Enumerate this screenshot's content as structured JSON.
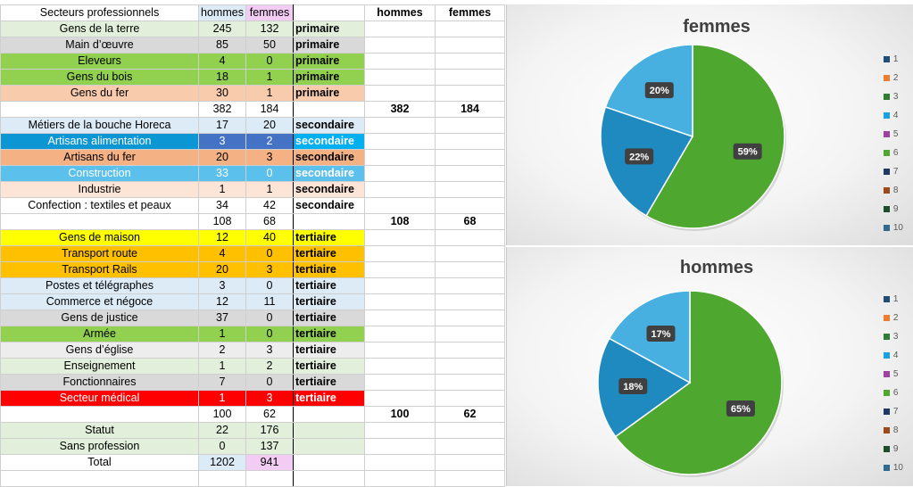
{
  "sheet": {
    "header": {
      "sector": "Secteurs professionnels",
      "hommes": "hommes",
      "femmes": "femmes",
      "cat": "",
      "tot_hommes": "hommes",
      "tot_femmes": "femmes"
    },
    "rows": [
      {
        "name": "Gens de la terre",
        "h": "245",
        "f": "132",
        "cat": "primaire",
        "th": "",
        "tf": "",
        "bg": "#e2efda",
        "fg": "#000000",
        "nbg": "#e2efda",
        "cbg": "#e2efda"
      },
      {
        "name": "Main d’œuvre",
        "h": "85",
        "f": "50",
        "cat": "primaire",
        "th": "",
        "tf": "",
        "bg": "#d9d9d9",
        "fg": "#000000",
        "nbg": "#d9d9d9",
        "cbg": "#d9d9d9"
      },
      {
        "name": "Eleveurs",
        "h": "4",
        "f": "0",
        "cat": "primaire",
        "th": "",
        "tf": "",
        "bg": "#92d050",
        "fg": "#000000",
        "nbg": "#92d050",
        "cbg": "#92d050"
      },
      {
        "name": "Gens du bois",
        "h": "18",
        "f": "1",
        "cat": "primaire",
        "th": "",
        "tf": "",
        "bg": "#92d050",
        "fg": "#000000",
        "nbg": "#92d050",
        "cbg": "#92d050"
      },
      {
        "name": "Gens du fer",
        "h": "30",
        "f": "1",
        "cat": "primaire",
        "th": "",
        "tf": "",
        "bg": "#f8cbad",
        "fg": "#000000",
        "nbg": "#f8cbad",
        "cbg": "#f8cbad"
      },
      {
        "name": "",
        "h": "382",
        "f": "184",
        "cat": "",
        "th": "382",
        "tf": "184",
        "bg": "#ffffff",
        "fg": "#000000",
        "nbg": "#ffffff",
        "cbg": "#ffffff"
      },
      {
        "name": "Métiers de la bouche Horeca",
        "h": "17",
        "f": "20",
        "cat": "secondaire",
        "th": "",
        "tf": "",
        "bg": "#ddebf7",
        "fg": "#000000",
        "nbg": "#ddebf7",
        "cbg": "#ddebf7"
      },
      {
        "name": "Artisans alimentation",
        "h": "3",
        "f": "2",
        "cat": "secondaire",
        "th": "",
        "tf": "",
        "bg": "#0c96d4",
        "fg": "#ffffff",
        "nbg": "#4472c4",
        "cbg": "#00b0f0"
      },
      {
        "name": "Artisans du fer",
        "h": "20",
        "f": "3",
        "cat": "secondaire",
        "th": "",
        "tf": "",
        "bg": "#f4b183",
        "fg": "#000000",
        "nbg": "#f4b183",
        "cbg": "#f4b183"
      },
      {
        "name": "Construction",
        "h": "33",
        "f": "0",
        "cat": "secondaire",
        "th": "",
        "tf": "",
        "bg": "#5bc0eb",
        "fg": "#ffffff",
        "nbg": "#5bc0eb",
        "cbg": "#5bc0eb"
      },
      {
        "name": "Industrie",
        "h": "1",
        "f": "1",
        "cat": "secondaire",
        "th": "",
        "tf": "",
        "bg": "#fce4d6",
        "fg": "#000000",
        "nbg": "#fce4d6",
        "cbg": "#fce4d6"
      },
      {
        "name": "Confection : textiles et peaux",
        "h": "34",
        "f": "42",
        "cat": "secondaire",
        "th": "",
        "tf": "",
        "bg": "#ffffff",
        "fg": "#000000",
        "nbg": "#ffffff",
        "cbg": "#ffffff"
      },
      {
        "name": "",
        "h": "108",
        "f": "68",
        "cat": "",
        "th": "108",
        "tf": "68",
        "bg": "#ffffff",
        "fg": "#000000",
        "nbg": "#ffffff",
        "cbg": "#ffffff"
      },
      {
        "name": "Gens de maison",
        "h": "12",
        "f": "40",
        "cat": "tertiaire",
        "th": "",
        "tf": "",
        "bg": "#ffff00",
        "fg": "#000000",
        "nbg": "#ffff00",
        "cbg": "#ffff00"
      },
      {
        "name": "Transport route",
        "h": "4",
        "f": "0",
        "cat": "tertiaire",
        "th": "",
        "tf": "",
        "bg": "#ffc000",
        "fg": "#000000",
        "nbg": "#ffc000",
        "cbg": "#ffc000"
      },
      {
        "name": "Transport Rails",
        "h": "20",
        "f": "3",
        "cat": "tertiaire",
        "th": "",
        "tf": "",
        "bg": "#ffc000",
        "fg": "#000000",
        "nbg": "#ffc000",
        "cbg": "#ffc000"
      },
      {
        "name": "Postes et télégraphes",
        "h": "3",
        "f": "0",
        "cat": "tertiaire",
        "th": "",
        "tf": "",
        "bg": "#ddebf7",
        "fg": "#000000",
        "nbg": "#ddebf7",
        "cbg": "#ddebf7"
      },
      {
        "name": "Commerce et négoce",
        "h": "12",
        "f": "11",
        "cat": "tertiaire",
        "th": "",
        "tf": "",
        "bg": "#ddebf7",
        "fg": "#000000",
        "nbg": "#ddebf7",
        "cbg": "#ddebf7"
      },
      {
        "name": "Gens de justice",
        "h": "37",
        "f": "0",
        "cat": "tertiaire",
        "th": "",
        "tf": "",
        "bg": "#d9d9d9",
        "fg": "#000000",
        "nbg": "#d9d9d9",
        "cbg": "#d9d9d9"
      },
      {
        "name": "Armée",
        "h": "1",
        "f": "0",
        "cat": "tertiaire",
        "th": "",
        "tf": "",
        "bg": "#92d050",
        "fg": "#000000",
        "nbg": "#92d050",
        "cbg": "#92d050"
      },
      {
        "name": "Gens d’église",
        "h": "2",
        "f": "3",
        "cat": "tertiaire",
        "th": "",
        "tf": "",
        "bg": "#ededed",
        "fg": "#000000",
        "nbg": "#ededed",
        "cbg": "#ededed"
      },
      {
        "name": "Enseignement",
        "h": "1",
        "f": "2",
        "cat": "tertiaire",
        "th": "",
        "tf": "",
        "bg": "#e2efda",
        "fg": "#000000",
        "nbg": "#e2efda",
        "cbg": "#e2efda"
      },
      {
        "name": "Fonctionnaires",
        "h": "7",
        "f": "0",
        "cat": "tertiaire",
        "th": "",
        "tf": "",
        "bg": "#d9d9d9",
        "fg": "#000000",
        "nbg": "#d9d9d9",
        "cbg": "#d9d9d9"
      },
      {
        "name": "Secteur médical",
        "h": "1",
        "f": "3",
        "cat": "tertiaire",
        "th": "",
        "tf": "",
        "bg": "#ff0000",
        "fg": "#ffffff",
        "nbg": "#ff0000",
        "cbg": "#ff0000"
      },
      {
        "name": "",
        "h": "100",
        "f": "62",
        "cat": "",
        "th": "100",
        "tf": "62",
        "bg": "#ffffff",
        "fg": "#000000",
        "nbg": "#ffffff",
        "cbg": "#ffffff"
      },
      {
        "name": "Statut",
        "h": "22",
        "f": "176",
        "cat": "",
        "th": "",
        "tf": "",
        "bg": "#e2efda",
        "fg": "#000000",
        "nbg": "#e2efda",
        "cbg": "#e2efda"
      },
      {
        "name": "Sans profession",
        "h": "0",
        "f": "137",
        "cat": "",
        "th": "",
        "tf": "",
        "bg": "#e2efda",
        "fg": "#000000",
        "nbg": "#e2efda",
        "cbg": "#e2efda"
      },
      {
        "name": "Total",
        "h": "1202",
        "f": "941",
        "cat": "",
        "th": "",
        "tf": "",
        "bg": "#ffffff",
        "fg": "#000000",
        "nbg": "#ffffff",
        "cbg": "#ffffff",
        "hbg": "#ddebf7",
        "fbg": "#f2ccf2"
      },
      {
        "name": "",
        "h": "",
        "f": "",
        "cat": "",
        "th": "",
        "tf": "",
        "bg": "#ffffff",
        "fg": "#000000",
        "nbg": "#ffffff",
        "cbg": "#ffffff"
      }
    ],
    "header_colors": {
      "hommes_bg": "#ddebf7",
      "femmes_bg": "#f2ccf2"
    }
  },
  "chart_data": [
    {
      "type": "pie",
      "title": "femmes",
      "legend_position": "right",
      "legend": [
        "1",
        "2",
        "3",
        "4",
        "5",
        "6",
        "7",
        "8",
        "9",
        "10"
      ],
      "legend_colors": [
        "#1f4e79",
        "#ed7d31",
        "#2e7d32",
        "#1ba1e2",
        "#a040a0",
        "#4ea72e",
        "#1f3864",
        "#9c4a1a",
        "#1e4d2b",
        "#2f6b8f"
      ],
      "slices": [
        {
          "label": "59%",
          "value": 59,
          "color": "#4ea72e"
        },
        {
          "label": "22%",
          "value": 22,
          "color": "#1f8ac0"
        },
        {
          "label": "20%",
          "value": 20,
          "color": "#47b0e0"
        }
      ]
    },
    {
      "type": "pie",
      "title": "hommes",
      "legend_position": "right",
      "legend": [
        "1",
        "2",
        "3",
        "4",
        "5",
        "6",
        "7",
        "8",
        "9",
        "10"
      ],
      "legend_colors": [
        "#1f4e79",
        "#ed7d31",
        "#2e7d32",
        "#1ba1e2",
        "#a040a0",
        "#4ea72e",
        "#1f3864",
        "#9c4a1a",
        "#1e4d2b",
        "#2f6b8f"
      ],
      "slices": [
        {
          "label": "65%",
          "value": 65,
          "color": "#4ea72e"
        },
        {
          "label": "18%",
          "value": 18,
          "color": "#1f8ac0"
        },
        {
          "label": "17%",
          "value": 17,
          "color": "#47b0e0"
        }
      ]
    }
  ]
}
